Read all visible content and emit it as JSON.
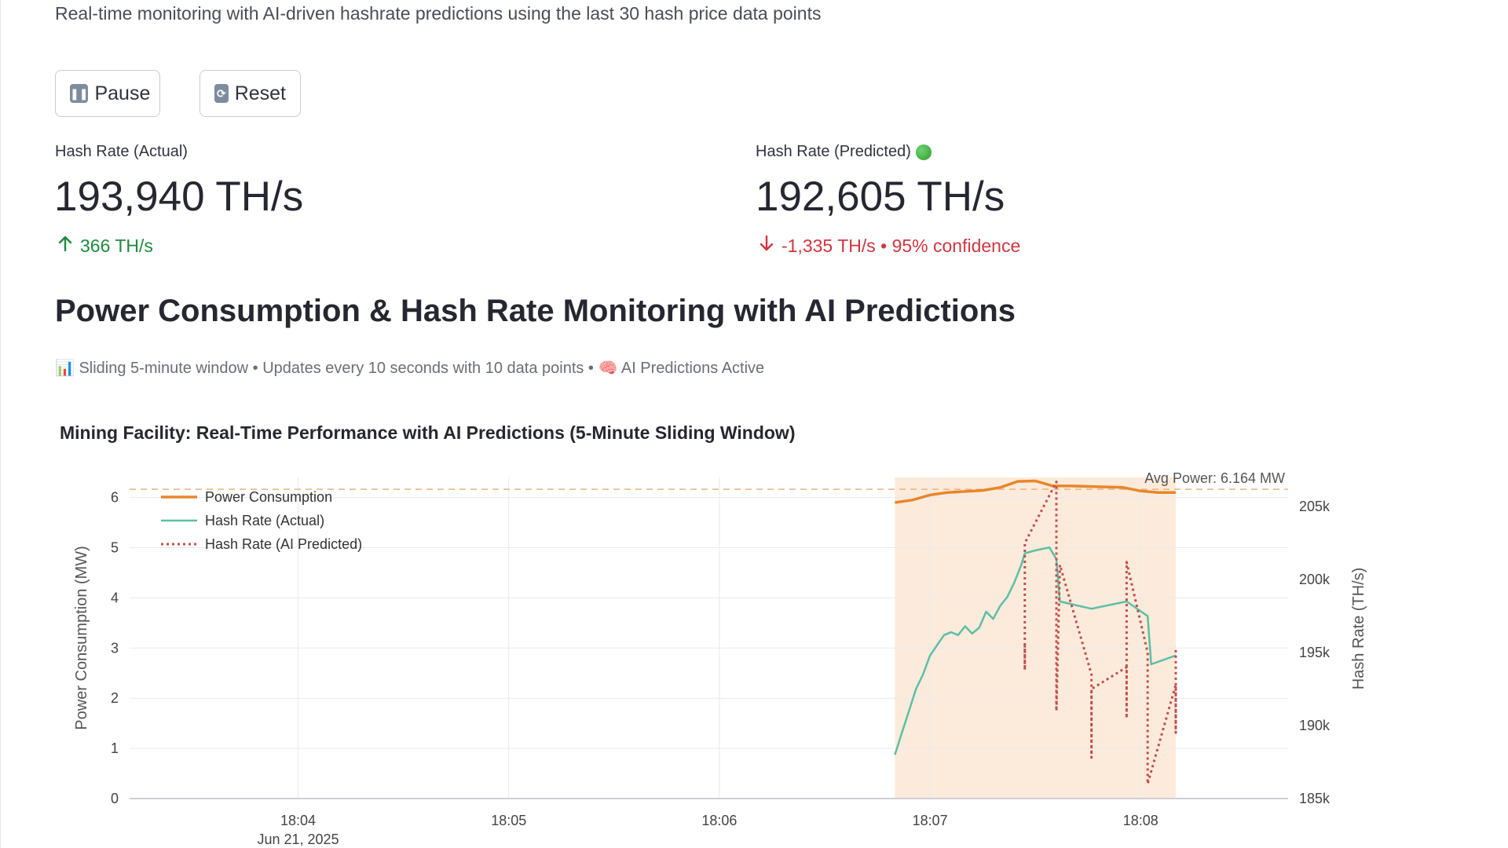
{
  "page": {
    "subtitle": "Real-time monitoring with AI-driven hashrate predictions using the last 30 hash price data points"
  },
  "controls": {
    "pause_label": "Pause",
    "reset_label": "Reset"
  },
  "metrics": {
    "actual": {
      "label": "Hash Rate (Actual)",
      "value": "193,940 TH/s",
      "delta": "366 TH/s",
      "delta_direction": "up"
    },
    "predicted": {
      "label": "Hash Rate (Predicted)",
      "value": "192,605 TH/s",
      "delta": "-1,335 TH/s • 95% confidence",
      "delta_direction": "down",
      "status_color": "#2e9b2e"
    }
  },
  "section": {
    "title": "Power Consumption & Hash Rate Monitoring with AI Predictions",
    "caption": "📊 Sliding 5-minute window • Updates every 10 seconds with 10 data points • 🧠 AI Predictions Active"
  },
  "colors": {
    "power": "#e8862b",
    "actual": "#5bbfa6",
    "predicted": "#c0504d",
    "window": "#fbe7d5",
    "positive": "#1f8a3c",
    "negative": "#d0353f"
  },
  "chart_data": {
    "type": "line",
    "title": "Mining Facility: Real-Time Performance with AI Predictions (5-Minute Sliding Window)",
    "x_ticks": [
      "18:04",
      "18:05",
      "18:06",
      "18:07",
      "18:08"
    ],
    "x_date_label": "Jun 21, 2025",
    "x_range": [
      "18:03:12",
      "18:08:42"
    ],
    "y_left": {
      "label": "Power Consumption (MW)",
      "ticks": [
        0,
        1,
        2,
        3,
        4,
        5,
        6
      ],
      "range": [
        0,
        6.4
      ]
    },
    "y_right": {
      "label": "Hash Rate (TH/s)",
      "ticks": [
        "185k",
        "190k",
        "195k",
        "200k",
        "205k"
      ],
      "range": [
        185000,
        207000
      ]
    },
    "grid": true,
    "legend_position": "top-left",
    "annotation": "Avg Power: 6.164 MW",
    "avg_power": 6.164,
    "shaded_window": [
      "18:06:50",
      "18:08:10"
    ],
    "series": [
      {
        "name": "Power Consumption",
        "axis": "left",
        "style": "solid",
        "points": [
          [
            "18:06:50",
            5.9
          ],
          [
            "18:06:55",
            5.95
          ],
          [
            "18:07:00",
            6.05
          ],
          [
            "18:07:05",
            6.1
          ],
          [
            "18:07:10",
            6.12
          ],
          [
            "18:07:15",
            6.14
          ],
          [
            "18:07:20",
            6.2
          ],
          [
            "18:07:25",
            6.32
          ],
          [
            "18:07:30",
            6.33
          ],
          [
            "18:07:35",
            6.23
          ],
          [
            "18:07:40",
            6.23
          ],
          [
            "18:07:45",
            6.22
          ],
          [
            "18:07:50",
            6.21
          ],
          [
            "18:07:55",
            6.2
          ],
          [
            "18:08:00",
            6.13
          ],
          [
            "18:08:05",
            6.1
          ],
          [
            "18:08:10",
            6.1
          ]
        ]
      },
      {
        "name": "Hash Rate (Actual)",
        "axis": "right",
        "style": "solid",
        "points": [
          [
            "18:06:50",
            188000
          ],
          [
            "18:06:52",
            189500
          ],
          [
            "18:06:54",
            191000
          ],
          [
            "18:06:56",
            192500
          ],
          [
            "18:06:58",
            193500
          ],
          [
            "18:07:00",
            194800
          ],
          [
            "18:07:02",
            195500
          ],
          [
            "18:07:04",
            196200
          ],
          [
            "18:07:06",
            196400
          ],
          [
            "18:07:08",
            196200
          ],
          [
            "18:07:10",
            196800
          ],
          [
            "18:07:12",
            196300
          ],
          [
            "18:07:14",
            196700
          ],
          [
            "18:07:16",
            197800
          ],
          [
            "18:07:18",
            197300
          ],
          [
            "18:07:20",
            198200
          ],
          [
            "18:07:22",
            198800
          ],
          [
            "18:07:24",
            199800
          ],
          [
            "18:07:26",
            201000
          ],
          [
            "18:07:27",
            201800
          ],
          [
            "18:07:30",
            202000
          ],
          [
            "18:07:34",
            202200
          ],
          [
            "18:07:36",
            201400
          ],
          [
            "18:07:37",
            198500
          ],
          [
            "18:07:46",
            198000
          ],
          [
            "18:07:56",
            198500
          ],
          [
            "18:08:02",
            197500
          ],
          [
            "18:08:03",
            194200
          ],
          [
            "18:08:10",
            194800
          ]
        ]
      },
      {
        "name": "Hash Rate (AI Predicted)",
        "axis": "right",
        "style": "dotted",
        "points": [
          [
            "18:07:27",
            195500
          ],
          [
            "18:07:27",
            193800
          ],
          [
            "18:07:27",
            202500
          ],
          [
            "18:07:36",
            206700
          ],
          [
            "18:07:36",
            191000
          ],
          [
            "18:07:37",
            201000
          ],
          [
            "18:07:46",
            193500
          ],
          [
            "18:07:46",
            187800
          ],
          [
            "18:07:46",
            192500
          ],
          [
            "18:07:56",
            194000
          ],
          [
            "18:07:56",
            190500
          ],
          [
            "18:07:56",
            201200
          ],
          [
            "18:08:02",
            195000
          ],
          [
            "18:08:02",
            186000
          ],
          [
            "18:08:10",
            192800
          ],
          [
            "18:08:10",
            189500
          ],
          [
            "18:08:10",
            195400
          ]
        ]
      }
    ]
  }
}
